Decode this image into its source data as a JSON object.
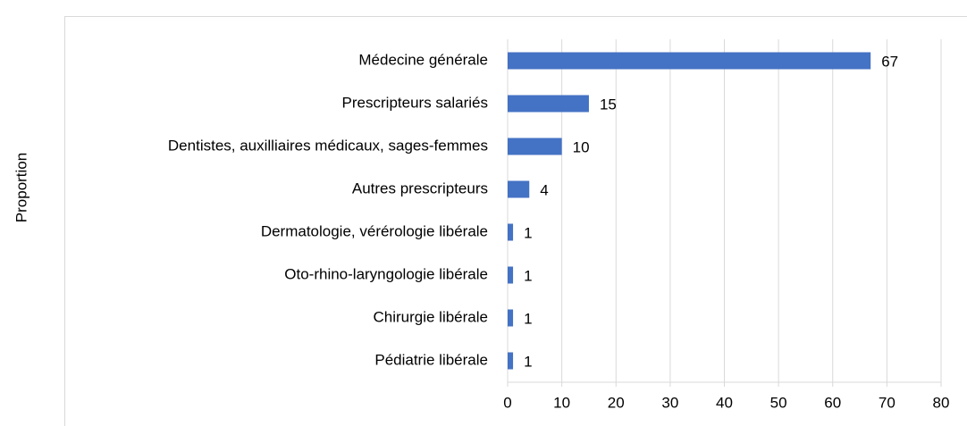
{
  "chart_data": {
    "type": "bar",
    "orientation": "horizontal",
    "ylabel": "Proportion",
    "categories": [
      "Médecine générale",
      "Prescripteurs salariés",
      "Dentistes, auxilliaires médicaux, sages-femmes",
      "Autres prescripteurs",
      "Dermatologie, vérérologie libérale",
      "Oto-rhino-laryngologie libérale",
      "Chirurgie libérale",
      "Pédiatrie libérale"
    ],
    "values": [
      67,
      15,
      10,
      4,
      1,
      1,
      1,
      1
    ],
    "color": "#4472c4",
    "xlim": [
      0,
      80
    ],
    "xticks": [
      0,
      10,
      20,
      30,
      40,
      50,
      60,
      70,
      80
    ],
    "grid": true
  }
}
